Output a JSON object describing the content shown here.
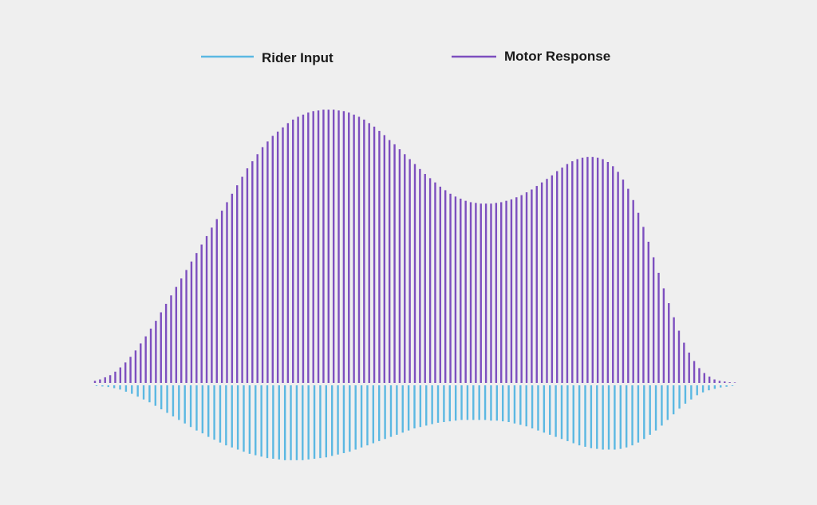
{
  "chart_data": {
    "type": "bar",
    "title": "",
    "xlabel": "",
    "ylabel": "",
    "legend": {
      "placement": "top-center"
    },
    "grid": false,
    "series": [
      {
        "name": "Rider Input",
        "color": "#5bb8e2",
        "direction": "down",
        "values": [
          0.5,
          0.8,
          1.2,
          2,
          3,
          4.5,
          6,
          8,
          10,
          12,
          14.5,
          17,
          19.5,
          22,
          24.5,
          27,
          29.5,
          32,
          34,
          36.5,
          38.5,
          40.5,
          42.5,
          44,
          45.5,
          47,
          48.5,
          49.5,
          50.5,
          51.5,
          52,
          52.5,
          53,
          53,
          53,
          53,
          52.5,
          52,
          51.5,
          51,
          50,
          49,
          48,
          47,
          45.5,
          44,
          42.5,
          41,
          39.5,
          38,
          36.5,
          35,
          33.5,
          32,
          30.5,
          29.5,
          28.5,
          27.5,
          26.5,
          26,
          25.5,
          25,
          24.5,
          24.5,
          24.5,
          24.5,
          24.5,
          25,
          25,
          25.5,
          26,
          27,
          28,
          29,
          30.5,
          32,
          33.5,
          35,
          36.5,
          38,
          39.5,
          41,
          42.5,
          43.5,
          44.5,
          45,
          45.5,
          45.5,
          45.5,
          45,
          44,
          42.5,
          40.5,
          38,
          35,
          32,
          28.5,
          24.5,
          20.5,
          16.5,
          13,
          10,
          7,
          5,
          3.5,
          2.5,
          1.5,
          1,
          0.5
        ]
      },
      {
        "name": "Motor Response",
        "color": "#7d4fbf",
        "direction": "up",
        "values": [
          1.5,
          2.5,
          4,
          5.5,
          8,
          11,
          14.5,
          18.5,
          23,
          28,
          33,
          38.5,
          44,
          50,
          56,
          62,
          68,
          74,
          80,
          86,
          92,
          98,
          104,
          110,
          116,
          122,
          128,
          134,
          140,
          146,
          152,
          157,
          162,
          167,
          171,
          175,
          178,
          181,
          184,
          186.5,
          188.5,
          190,
          191.5,
          192.5,
          193,
          193.5,
          193.5,
          193.5,
          193,
          192.5,
          191.5,
          190,
          188.5,
          186.5,
          184,
          181.5,
          178.5,
          175.5,
          172,
          169,
          165.5,
          162,
          158.5,
          155,
          151.5,
          148,
          145,
          142,
          139,
          136.5,
          134,
          132,
          130.5,
          129,
          128,
          127.5,
          127,
          127,
          127,
          127.5,
          128,
          129,
          130,
          131.5,
          133,
          135,
          137,
          139.5,
          142,
          144.5,
          147,
          150,
          152.5,
          155,
          157,
          158.5,
          159.5,
          160,
          160,
          159.5,
          158.5,
          156.5,
          153.5,
          149.5,
          144,
          137.5,
          129.5,
          120.5,
          110.5,
          100,
          89,
          78,
          67,
          56.5,
          46.5,
          37,
          28.5,
          21.5,
          15.5,
          10.5,
          7,
          4.5,
          2.5,
          1.5,
          1,
          0.5,
          0.3
        ]
      }
    ]
  }
}
